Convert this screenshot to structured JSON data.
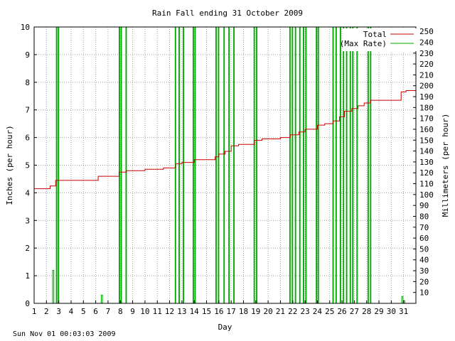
{
  "footer": {
    "timestamp": "Sun Nov 01 00:03:03 2009"
  },
  "chart_data": {
    "type": "line",
    "title": "Rain Fall ending 31 October 2009",
    "xlabel": "Day",
    "ylabel": "Inches (per hour)",
    "y2label": "Millimeters (per hour)",
    "xlim": [
      1,
      32
    ],
    "ylim": [
      0,
      10
    ],
    "y2lim": [
      0,
      254
    ],
    "x_ticks": [
      1,
      2,
      3,
      4,
      5,
      6,
      7,
      8,
      9,
      10,
      11,
      12,
      13,
      14,
      15,
      16,
      17,
      18,
      19,
      20,
      21,
      22,
      23,
      24,
      25,
      26,
      27,
      28,
      29,
      30,
      31
    ],
    "y_ticks": [
      0,
      1,
      2,
      3,
      4,
      5,
      6,
      7,
      8,
      9,
      10
    ],
    "y2_ticks": [
      10,
      20,
      30,
      40,
      50,
      60,
      70,
      80,
      90,
      100,
      110,
      120,
      130,
      140,
      150,
      160,
      170,
      180,
      190,
      200,
      210,
      220,
      230,
      240,
      250
    ],
    "grid": true,
    "legend_position": "top-right",
    "colors": {
      "total": "#cc0000",
      "max_rate": "#00aa00",
      "grid": "#a0a0a0"
    },
    "series": [
      {
        "name": "Total",
        "kind": "step",
        "points": [
          [
            1,
            4.15
          ],
          [
            2.3,
            4.15
          ],
          [
            2.3,
            4.25
          ],
          [
            2.75,
            4.25
          ],
          [
            2.75,
            4.45
          ],
          [
            6.2,
            4.45
          ],
          [
            6.2,
            4.6
          ],
          [
            7.9,
            4.6
          ],
          [
            7.9,
            4.75
          ],
          [
            8.5,
            4.75
          ],
          [
            8.5,
            4.8
          ],
          [
            10,
            4.8
          ],
          [
            10,
            4.85
          ],
          [
            11.5,
            4.85
          ],
          [
            11.5,
            4.9
          ],
          [
            12.5,
            4.9
          ],
          [
            12.5,
            5.05
          ],
          [
            13,
            5.05
          ],
          [
            13,
            5.1
          ],
          [
            14,
            5.1
          ],
          [
            14,
            5.2
          ],
          [
            15.7,
            5.2
          ],
          [
            15.7,
            5.3
          ],
          [
            16,
            5.3
          ],
          [
            16,
            5.4
          ],
          [
            16.5,
            5.4
          ],
          [
            16.5,
            5.5
          ],
          [
            17,
            5.5
          ],
          [
            17,
            5.7
          ],
          [
            17.6,
            5.7
          ],
          [
            17.6,
            5.75
          ],
          [
            18.9,
            5.75
          ],
          [
            18.9,
            5.9
          ],
          [
            19.5,
            5.9
          ],
          [
            19.5,
            5.95
          ],
          [
            21,
            5.95
          ],
          [
            21,
            6.0
          ],
          [
            21.8,
            6.0
          ],
          [
            21.8,
            6.1
          ],
          [
            22.5,
            6.1
          ],
          [
            22.5,
            6.2
          ],
          [
            23,
            6.2
          ],
          [
            23,
            6.3
          ],
          [
            24,
            6.3
          ],
          [
            24,
            6.45
          ],
          [
            24.6,
            6.45
          ],
          [
            24.6,
            6.5
          ],
          [
            25.3,
            6.5
          ],
          [
            25.3,
            6.6
          ],
          [
            25.8,
            6.6
          ],
          [
            25.8,
            6.75
          ],
          [
            26.2,
            6.75
          ],
          [
            26.2,
            6.95
          ],
          [
            26.8,
            6.95
          ],
          [
            26.8,
            7.05
          ],
          [
            27.3,
            7.05
          ],
          [
            27.3,
            7.15
          ],
          [
            27.8,
            7.15
          ],
          [
            27.8,
            7.25
          ],
          [
            28.3,
            7.25
          ],
          [
            28.3,
            7.35
          ],
          [
            30.8,
            7.35
          ],
          [
            30.8,
            7.65
          ],
          [
            31.2,
            7.65
          ],
          [
            31.2,
            7.7
          ],
          [
            32,
            7.7
          ]
        ]
      },
      {
        "name": "(Max Rate)",
        "kind": "bars",
        "bars": [
          [
            2.5,
            2.6,
            1.2
          ],
          [
            2.8,
            2.85,
            10
          ],
          [
            2.95,
            3.0,
            10
          ],
          [
            6.45,
            6.55,
            0.3
          ],
          [
            7.9,
            7.95,
            10
          ],
          [
            8.05,
            8.1,
            10
          ],
          [
            8.45,
            8.5,
            10
          ],
          [
            12.45,
            12.5,
            10
          ],
          [
            12.75,
            12.8,
            10
          ],
          [
            13.1,
            13.15,
            10
          ],
          [
            13.9,
            13.95,
            10
          ],
          [
            14.05,
            14.1,
            10
          ],
          [
            15.75,
            15.8,
            10
          ],
          [
            15.95,
            16.0,
            10
          ],
          [
            16.4,
            16.45,
            10
          ],
          [
            16.8,
            16.85,
            10
          ],
          [
            17.2,
            17.25,
            10
          ],
          [
            18.85,
            18.9,
            10
          ],
          [
            19.05,
            19.1,
            10
          ],
          [
            21.75,
            21.8,
            10
          ],
          [
            21.95,
            22.0,
            10
          ],
          [
            22.2,
            22.25,
            10
          ],
          [
            22.55,
            22.6,
            10
          ],
          [
            22.85,
            22.9,
            10
          ],
          [
            23.05,
            23.1,
            10
          ],
          [
            23.9,
            23.95,
            10
          ],
          [
            24.05,
            24.1,
            10
          ],
          [
            25.25,
            25.3,
            10
          ],
          [
            25.5,
            25.55,
            10
          ],
          [
            25.85,
            25.9,
            10
          ],
          [
            26.1,
            26.15,
            10
          ],
          [
            26.35,
            26.4,
            10
          ],
          [
            26.65,
            26.7,
            10
          ],
          [
            26.85,
            26.9,
            10
          ],
          [
            27.2,
            27.25,
            10
          ],
          [
            28.1,
            28.15,
            10
          ],
          [
            28.3,
            28.35,
            10
          ],
          [
            30.85,
            30.95,
            0.25
          ],
          [
            31.0,
            31.1,
            0.1
          ]
        ]
      }
    ]
  }
}
